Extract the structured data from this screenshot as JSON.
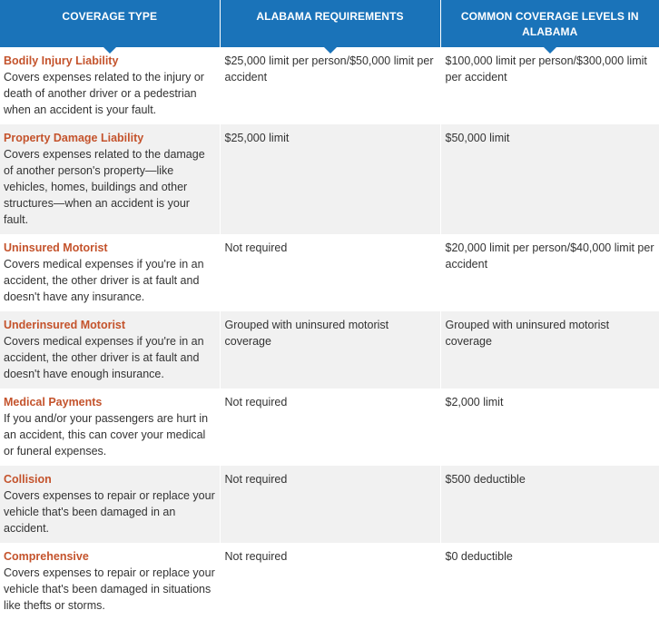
{
  "headers": {
    "coverage_type": "COVERAGE TYPE",
    "alabama_requirements": "ALABAMA REQUIREMENTS",
    "common_levels": "COMMON COVERAGE LEVELS IN ALABAMA"
  },
  "colors": {
    "header_bg": "#1a73b9",
    "coverage_name": "#c4532c",
    "row_alt": "#f1f1f1"
  },
  "rows": [
    {
      "name": "Bodily Injury Liability",
      "description": "Covers expenses related to the injury or death of another driver or a pedestrian when an accident is your fault.",
      "requirement": "$25,000 limit per person/$50,000 limit per accident",
      "common": "$100,000 limit per person/$300,000 limit per accident"
    },
    {
      "name": "Property Damage Liability",
      "description": "Covers expenses related to the damage of another person's property—like vehicles, homes, buildings and other structures—when an accident is your fault.",
      "requirement": "$25,000 limit",
      "common": "$50,000 limit"
    },
    {
      "name": "Uninsured Motorist",
      "description": "Covers medical expenses if you're in an accident, the other driver is at fault and doesn't have any insurance.",
      "requirement": "Not required",
      "common": "$20,000 limit per person/$40,000 limit per accident"
    },
    {
      "name": "Underinsured Motorist",
      "description": "Covers medical expenses if you're in an accident, the other driver is at fault and doesn't have enough insurance.",
      "requirement": "Grouped with uninsured motorist coverage",
      "common": "Grouped with uninsured motorist coverage"
    },
    {
      "name": "Medical Payments",
      "description": "If you and/or your passengers are hurt in an accident, this can cover your medical or funeral expenses.",
      "requirement": "Not required",
      "common": "$2,000 limit"
    },
    {
      "name": "Collision",
      "description": "Covers expenses to repair or replace your vehicle that's been damaged in an accident.",
      "requirement": "Not required",
      "common": "$500 deductible"
    },
    {
      "name": "Comprehensive",
      "description": "Covers expenses to repair or replace your vehicle that's been damaged in situations like thefts or storms.",
      "requirement": "Not required",
      "common": "$0 deductible"
    }
  ]
}
